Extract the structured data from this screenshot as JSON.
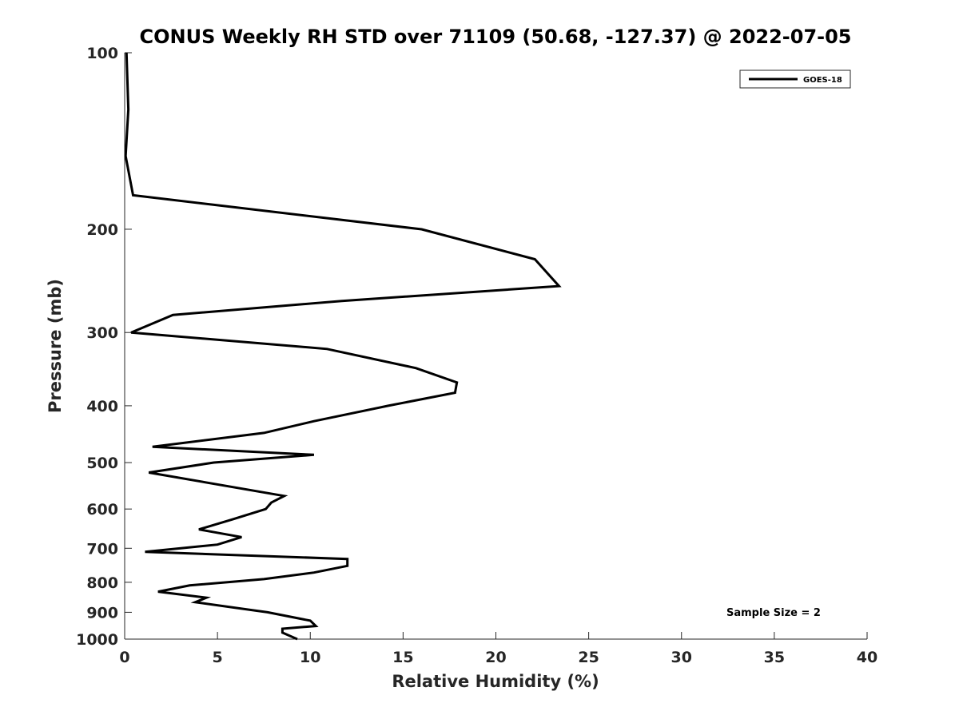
{
  "chart_data": {
    "type": "line",
    "title": "CONUS Weekly RH STD over 71109 (50.68, -127.37) @ 2022-07-05",
    "xlabel": "Relative Humidity (%)",
    "ylabel": "Pressure (mb)",
    "xlim": [
      0,
      40
    ],
    "ylim": [
      100,
      1000
    ],
    "y_scale": "log",
    "y_reversed": true,
    "x_ticks": [
      0,
      5,
      10,
      15,
      20,
      25,
      30,
      35,
      40
    ],
    "y_ticks": [
      100,
      200,
      300,
      400,
      500,
      600,
      700,
      800,
      900,
      1000
    ],
    "grid": false,
    "legend_position": "top-right",
    "annotation": "Sample Size = 2",
    "series": [
      {
        "name": "GOES-18",
        "color": "#000000",
        "points": [
          [
            0.1,
            100
          ],
          [
            0.2,
            125
          ],
          [
            0.05,
            150
          ],
          [
            0.45,
            175
          ],
          [
            16.0,
            200
          ],
          [
            22.1,
            225
          ],
          [
            23.4,
            250
          ],
          [
            11.7,
            265
          ],
          [
            2.6,
            280
          ],
          [
            0.35,
            300
          ],
          [
            10.9,
            320
          ],
          [
            15.7,
            345
          ],
          [
            17.9,
            365
          ],
          [
            17.8,
            380
          ],
          [
            14.2,
            400
          ],
          [
            10.2,
            425
          ],
          [
            7.5,
            445
          ],
          [
            1.5,
            470
          ],
          [
            10.2,
            485
          ],
          [
            4.8,
            500
          ],
          [
            1.3,
            520
          ],
          [
            8.6,
            570
          ],
          [
            7.9,
            585
          ],
          [
            7.6,
            600
          ],
          [
            5.8,
            625
          ],
          [
            4.0,
            650
          ],
          [
            6.3,
            670
          ],
          [
            5.0,
            690
          ],
          [
            1.1,
            710
          ],
          [
            12.0,
            730
          ],
          [
            12.0,
            750
          ],
          [
            10.2,
            770
          ],
          [
            7.5,
            790
          ],
          [
            3.5,
            810
          ],
          [
            1.8,
            830
          ],
          [
            4.4,
            850
          ],
          [
            3.8,
            865
          ],
          [
            7.7,
            900
          ],
          [
            10.0,
            930
          ],
          [
            10.3,
            950
          ],
          [
            8.5,
            960
          ],
          [
            8.5,
            975
          ],
          [
            9.3,
            1000
          ]
        ]
      }
    ]
  }
}
